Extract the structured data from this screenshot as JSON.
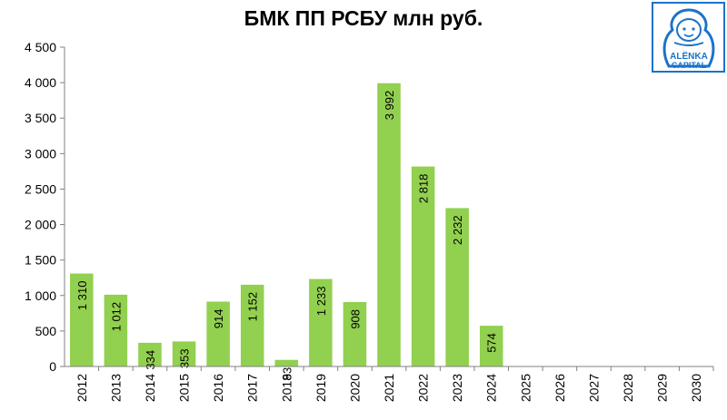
{
  "chart_data": {
    "type": "bar",
    "title": "БМК ПП РСБУ млн руб.",
    "xlabel": "",
    "ylabel": "",
    "categories": [
      "2012",
      "2013",
      "2014",
      "2015",
      "2016",
      "2017",
      "2018",
      "2019",
      "2020",
      "2021",
      "2022",
      "2023",
      "2024",
      "2025",
      "2026",
      "2027",
      "2028",
      "2029",
      "2030"
    ],
    "values": [
      1310,
      1012,
      334,
      353,
      914,
      1152,
      93,
      1233,
      908,
      3992,
      2818,
      2232,
      574,
      null,
      null,
      null,
      null,
      null,
      null
    ],
    "data_labels": [
      "1 310",
      "1 012",
      "334",
      "353",
      "914",
      "1 152",
      "93",
      "1 233",
      "908",
      "3 992",
      "2 818",
      "2 232",
      "574",
      "",
      "",
      "",
      "",
      "",
      ""
    ],
    "ylim": [
      0,
      4500
    ],
    "yticks": [
      0,
      500,
      1000,
      1500,
      2000,
      2500,
      3000,
      3500,
      4000,
      4500
    ],
    "ytick_labels": [
      "0",
      "500",
      "1 000",
      "1 500",
      "2 000",
      "2 500",
      "3 000",
      "3 500",
      "4 000",
      "4 500"
    ],
    "grid": false,
    "legend": "none",
    "bar_color": "#92d050"
  },
  "logo": {
    "text_line1": "ALËNKA",
    "text_line2": "CAPITAL",
    "color": "#1a73c9"
  }
}
